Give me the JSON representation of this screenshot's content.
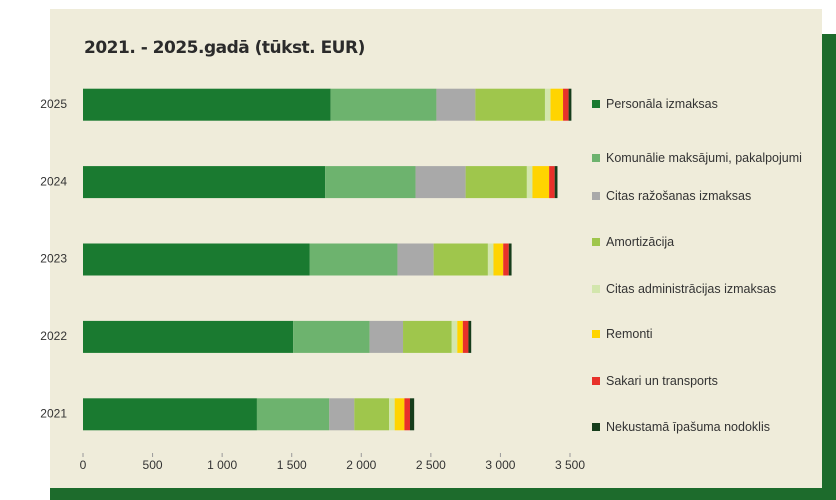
{
  "chart_data": {
    "type": "stacked-barh",
    "title": "2021. - 2025.gadā (tūkst. EUR)",
    "categories": [
      "2025",
      "2024",
      "2023",
      "2022",
      "2021"
    ],
    "series": [
      {
        "name": "Personāla izmaksas",
        "color": "#1a7a30",
        "values": [
          1780,
          1740,
          1630,
          1510,
          1250
        ]
      },
      {
        "name": "Komunālie maksājumi, pakalpojumi",
        "color": "#6db36e",
        "values": [
          760,
          650,
          630,
          550,
          520
        ]
      },
      {
        "name": "Citas ražošanas izmaksas",
        "color": "#a9a9a9",
        "values": [
          280,
          360,
          260,
          240,
          180
        ]
      },
      {
        "name": "Amortizācija",
        "color": "#9fc64c",
        "values": [
          500,
          440,
          390,
          350,
          250
        ]
      },
      {
        "name": "Citas administrācijas izmaksas",
        "color": "#d3e6ad",
        "values": [
          40,
          40,
          40,
          40,
          40
        ]
      },
      {
        "name": "Remonti",
        "color": "#ffd400",
        "values": [
          90,
          120,
          70,
          40,
          70
        ]
      },
      {
        "name": "Sakari un transports",
        "color": "#e8312a",
        "values": [
          40,
          40,
          40,
          40,
          40
        ]
      },
      {
        "name": "Nekustamā īpašuma nodoklis",
        "color": "#163d1b",
        "values": [
          20,
          20,
          20,
          20,
          30
        ]
      }
    ],
    "xlim": [
      0,
      3500
    ],
    "xticks": [
      0,
      500,
      {
        "value": 1000,
        "label": "1 000"
      },
      {
        "value": 1500,
        "label": "1 500"
      },
      {
        "value": 2000,
        "label": "2 000"
      },
      {
        "value": 2500,
        "label": "2 500"
      },
      {
        "value": 3000,
        "label": "3 000"
      },
      {
        "value": 3500,
        "label": "3 500"
      }
    ],
    "legend": "right"
  }
}
